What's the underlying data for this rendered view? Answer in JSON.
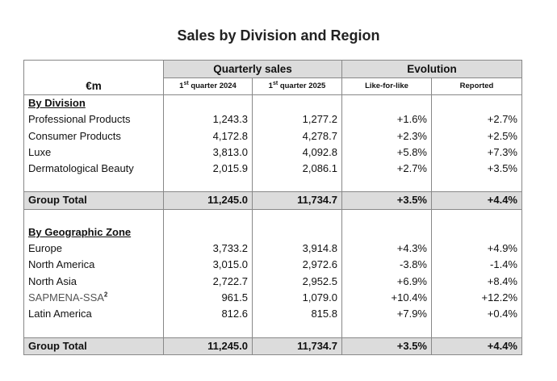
{
  "title": "Sales by Division and Region",
  "header": {
    "group_quarterly": "Quarterly sales",
    "group_evolution": "Evolution",
    "currency": "€m",
    "q2024_prefix": "1",
    "q2024_sup": "st",
    "q2024_suffix": " quarter 2024",
    "q2025_prefix": "1",
    "q2025_sup": "st",
    "q2025_suffix": " quarter 2025",
    "like_for_like": "Like-for-like",
    "reported": "Reported"
  },
  "division": {
    "title": "By Division",
    "rows": [
      {
        "name": "Professional Products",
        "q2024": "1,243.3",
        "q2025": "1,277.2",
        "lfl": "+1.6%",
        "reported": "+2.7%"
      },
      {
        "name": "Consumer Products",
        "q2024": "4,172.8",
        "q2025": "4,278.7",
        "lfl": "+2.3%",
        "reported": "+2.5%"
      },
      {
        "name": "Luxe",
        "q2024": "3,813.0",
        "q2025": "4,092.8",
        "lfl": "+5.8%",
        "reported": "+7.3%"
      },
      {
        "name": "Dermatological Beauty",
        "q2024": "2,015.9",
        "q2025": "2,086.1",
        "lfl": "+2.7%",
        "reported": "+3.5%"
      }
    ],
    "total": {
      "name": "Group Total",
      "q2024": "11,245.0",
      "q2025": "11,734.7",
      "lfl": "+3.5%",
      "reported": "+4.4%"
    }
  },
  "geo": {
    "title": "By Geographic Zone",
    "rows": [
      {
        "name": "Europe",
        "q2024": "3,733.2",
        "q2025": "3,914.8",
        "lfl": "+4.3%",
        "reported": "+4.9%"
      },
      {
        "name": "North America",
        "q2024": "3,015.0",
        "q2025": "2,972.6",
        "lfl": "-3.8%",
        "reported": "-1.4%"
      },
      {
        "name": "North Asia",
        "q2024": "2,722.7",
        "q2025": "2,952.5",
        "lfl": "+6.9%",
        "reported": "+8.4%"
      },
      {
        "name": "SAPMENA-SSA",
        "footnote": "2",
        "q2024": "961.5",
        "q2025": "1,079.0",
        "lfl": "+10.4%",
        "reported": "+12.2%"
      },
      {
        "name": "Latin America",
        "q2024": "812.6",
        "q2025": "815.8",
        "lfl": "+7.9%",
        "reported": "+0.4%"
      }
    ],
    "total": {
      "name": "Group Total",
      "q2024": "11,245.0",
      "q2025": "11,734.7",
      "lfl": "+3.5%",
      "reported": "+4.4%"
    }
  }
}
